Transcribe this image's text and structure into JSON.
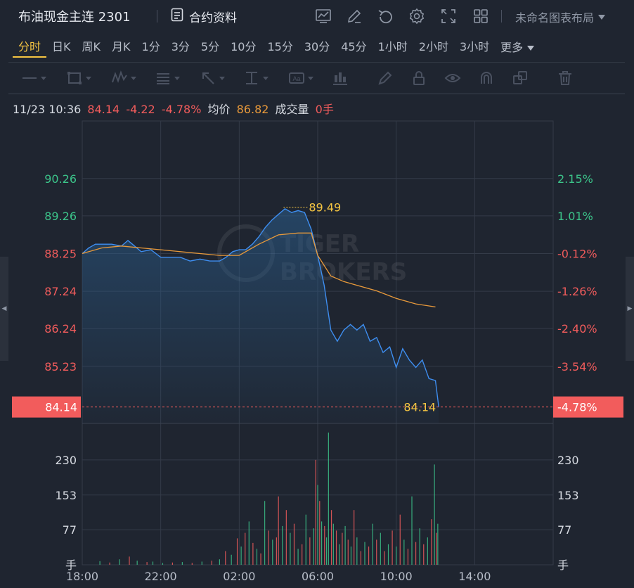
{
  "header": {
    "title": "布油现金主连 2301",
    "contract_info_label": "合约资料",
    "layout_label": "未命名图表布局",
    "icons": [
      "indicator-icon",
      "edit-icon",
      "undo-icon",
      "settings-icon",
      "fullscreen-icon",
      "grid-layout-icon"
    ]
  },
  "periods": [
    {
      "label": "分时",
      "active": true
    },
    {
      "label": "日K"
    },
    {
      "label": "周K"
    },
    {
      "label": "月K"
    },
    {
      "label": "1分"
    },
    {
      "label": "3分"
    },
    {
      "label": "5分"
    },
    {
      "label": "10分"
    },
    {
      "label": "15分"
    },
    {
      "label": "30分"
    },
    {
      "label": "45分"
    },
    {
      "label": "1小时"
    },
    {
      "label": "2小时"
    },
    {
      "label": "3小时"
    }
  ],
  "more_label": "更多",
  "info": {
    "datetime": "11/23 10:36",
    "price": "84.14",
    "change": "-4.22",
    "change_pct": "-4.78%",
    "avg_label": "均价",
    "avg_value": "86.82",
    "volume_label": "成交量",
    "volume_value": "0手"
  },
  "watermark": {
    "line1": "TIGER",
    "line2": "BROKERS"
  },
  "colors": {
    "up": "#3cc48a",
    "down": "#f25c5c",
    "price_line": "#3e8ef0",
    "avg_line": "#e99a3b",
    "accent": "#f5c542",
    "background": "#1f2530"
  },
  "chart_data": {
    "type": "line",
    "price_axis_left": [
      "90.26",
      "89.26",
      "88.25",
      "87.24",
      "86.24",
      "85.23",
      "84.14"
    ],
    "price_axis_right": [
      "2.15%",
      "1.01%",
      "-0.12%",
      "-1.26%",
      "-2.40%",
      "-3.54%",
      "-4.78%"
    ],
    "volume_axis": [
      "230",
      "153",
      "77",
      "手"
    ],
    "x_ticks": [
      "18:00",
      "22:00",
      "02:00",
      "06:00",
      "10:00",
      "14:00"
    ],
    "high_label": "89.49",
    "last_label": "84.14",
    "price_series": {
      "name": "price",
      "points": [
        [
          18.0,
          88.25
        ],
        [
          18.33,
          88.4
        ],
        [
          18.67,
          88.5
        ],
        [
          19.0,
          88.5
        ],
        [
          19.5,
          88.5
        ],
        [
          20.0,
          88.45
        ],
        [
          20.33,
          88.6
        ],
        [
          20.67,
          88.45
        ],
        [
          21.0,
          88.3
        ],
        [
          21.5,
          88.35
        ],
        [
          22.0,
          88.15
        ],
        [
          22.5,
          88.15
        ],
        [
          23.0,
          88.15
        ],
        [
          23.5,
          88.05
        ],
        [
          24.0,
          88.1
        ],
        [
          24.5,
          88.05
        ],
        [
          25.0,
          88.05
        ],
        [
          25.33,
          88.15
        ],
        [
          25.67,
          88.3
        ],
        [
          26.0,
          88.35
        ],
        [
          26.33,
          88.35
        ],
        [
          26.67,
          88.5
        ],
        [
          27.0,
          88.7
        ],
        [
          27.33,
          88.95
        ],
        [
          27.67,
          89.15
        ],
        [
          28.0,
          89.3
        ],
        [
          28.33,
          89.45
        ],
        [
          28.67,
          89.35
        ],
        [
          29.0,
          89.4
        ],
        [
          29.33,
          89.35
        ],
        [
          29.67,
          88.9
        ],
        [
          30.0,
          88.2
        ],
        [
          30.33,
          87.4
        ],
        [
          30.67,
          86.2
        ],
        [
          31.0,
          85.9
        ],
        [
          31.33,
          86.2
        ],
        [
          31.67,
          86.35
        ],
        [
          32.0,
          86.2
        ],
        [
          32.33,
          86.35
        ],
        [
          32.67,
          85.9
        ],
        [
          33.0,
          86.0
        ],
        [
          33.33,
          85.6
        ],
        [
          33.67,
          85.75
        ],
        [
          34.0,
          85.2
        ],
        [
          34.33,
          85.7
        ],
        [
          34.67,
          85.4
        ],
        [
          35.0,
          85.2
        ],
        [
          35.33,
          85.4
        ],
        [
          35.67,
          84.9
        ],
        [
          36.0,
          84.85
        ],
        [
          36.17,
          84.14
        ]
      ]
    },
    "avg_series": {
      "name": "均价",
      "points": [
        [
          18.0,
          88.25
        ],
        [
          19.0,
          88.4
        ],
        [
          20.0,
          88.45
        ],
        [
          21.0,
          88.4
        ],
        [
          22.0,
          88.35
        ],
        [
          23.0,
          88.3
        ],
        [
          24.0,
          88.25
        ],
        [
          25.0,
          88.2
        ],
        [
          26.0,
          88.2
        ],
        [
          27.0,
          88.5
        ],
        [
          28.0,
          88.75
        ],
        [
          29.0,
          88.8
        ],
        [
          29.67,
          88.8
        ],
        [
          30.0,
          88.2
        ],
        [
          30.67,
          87.65
        ],
        [
          31.33,
          87.5
        ],
        [
          32.0,
          87.4
        ],
        [
          33.0,
          87.25
        ],
        [
          34.0,
          87.05
        ],
        [
          35.0,
          86.9
        ],
        [
          36.0,
          86.82
        ]
      ]
    },
    "x_range": [
      18.0,
      42.0
    ],
    "y_range": [
      83.7,
      91.8
    ],
    "pct_base": 88.36,
    "volume_range": [
      0,
      310
    ],
    "volume_samples": [
      [
        18.9,
        8,
        "up"
      ],
      [
        19.4,
        5,
        "down"
      ],
      [
        19.9,
        12,
        "up"
      ],
      [
        20.4,
        18,
        "down"
      ],
      [
        20.8,
        9,
        "up"
      ],
      [
        21.3,
        6,
        "down"
      ],
      [
        21.6,
        7,
        "up"
      ],
      [
        22.1,
        4,
        "up"
      ],
      [
        22.6,
        5,
        "down"
      ],
      [
        23.1,
        6,
        "up"
      ],
      [
        23.6,
        4,
        "down"
      ],
      [
        24.1,
        7,
        "up"
      ],
      [
        24.6,
        9,
        "down"
      ],
      [
        25.0,
        12,
        "up"
      ],
      [
        25.3,
        30,
        "down"
      ],
      [
        25.6,
        22,
        "up"
      ],
      [
        25.9,
        58,
        "down"
      ],
      [
        26.1,
        40,
        "up"
      ],
      [
        26.3,
        70,
        "down"
      ],
      [
        26.5,
        95,
        "up"
      ],
      [
        26.7,
        48,
        "down"
      ],
      [
        26.9,
        35,
        "up"
      ],
      [
        27.1,
        25,
        "down"
      ],
      [
        27.3,
        140,
        "up"
      ],
      [
        27.5,
        75,
        "down"
      ],
      [
        27.7,
        55,
        "up"
      ],
      [
        27.9,
        60,
        "down"
      ],
      [
        28.0,
        150,
        "down"
      ],
      [
        28.2,
        85,
        "up"
      ],
      [
        28.4,
        120,
        "down"
      ],
      [
        28.6,
        70,
        "up"
      ],
      [
        28.8,
        90,
        "down"
      ],
      [
        29.0,
        35,
        "up"
      ],
      [
        29.2,
        45,
        "down"
      ],
      [
        29.4,
        110,
        "up"
      ],
      [
        29.6,
        60,
        "down"
      ],
      [
        29.8,
        80,
        "up"
      ],
      [
        29.9,
        230,
        "down"
      ],
      [
        30.0,
        175,
        "up"
      ],
      [
        30.1,
        140,
        "down"
      ],
      [
        30.2,
        95,
        "up"
      ],
      [
        30.35,
        85,
        "down"
      ],
      [
        30.45,
        60,
        "up"
      ],
      [
        30.55,
        290,
        "up"
      ],
      [
        30.7,
        120,
        "down"
      ],
      [
        30.8,
        90,
        "up"
      ],
      [
        30.95,
        75,
        "down"
      ],
      [
        31.1,
        45,
        "up"
      ],
      [
        31.25,
        70,
        "down"
      ],
      [
        31.4,
        85,
        "up"
      ],
      [
        31.55,
        55,
        "down"
      ],
      [
        31.7,
        40,
        "up"
      ],
      [
        31.85,
        120,
        "down"
      ],
      [
        32.0,
        60,
        "up"
      ],
      [
        32.2,
        30,
        "down"
      ],
      [
        32.4,
        50,
        "up"
      ],
      [
        32.6,
        40,
        "down"
      ],
      [
        32.8,
        90,
        "up"
      ],
      [
        33.0,
        55,
        "down"
      ],
      [
        33.2,
        70,
        "up"
      ],
      [
        33.4,
        30,
        "down"
      ],
      [
        33.6,
        45,
        "up"
      ],
      [
        33.8,
        75,
        "down"
      ],
      [
        34.0,
        40,
        "up"
      ],
      [
        34.2,
        110,
        "down"
      ],
      [
        34.4,
        55,
        "up"
      ],
      [
        34.6,
        35,
        "down"
      ],
      [
        34.8,
        150,
        "up"
      ],
      [
        35.0,
        50,
        "down"
      ],
      [
        35.2,
        80,
        "up"
      ],
      [
        35.4,
        45,
        "down"
      ],
      [
        35.6,
        60,
        "up"
      ],
      [
        35.8,
        100,
        "down"
      ],
      [
        35.95,
        220,
        "up"
      ],
      [
        36.05,
        70,
        "down"
      ],
      [
        36.12,
        90,
        "up"
      ]
    ]
  }
}
